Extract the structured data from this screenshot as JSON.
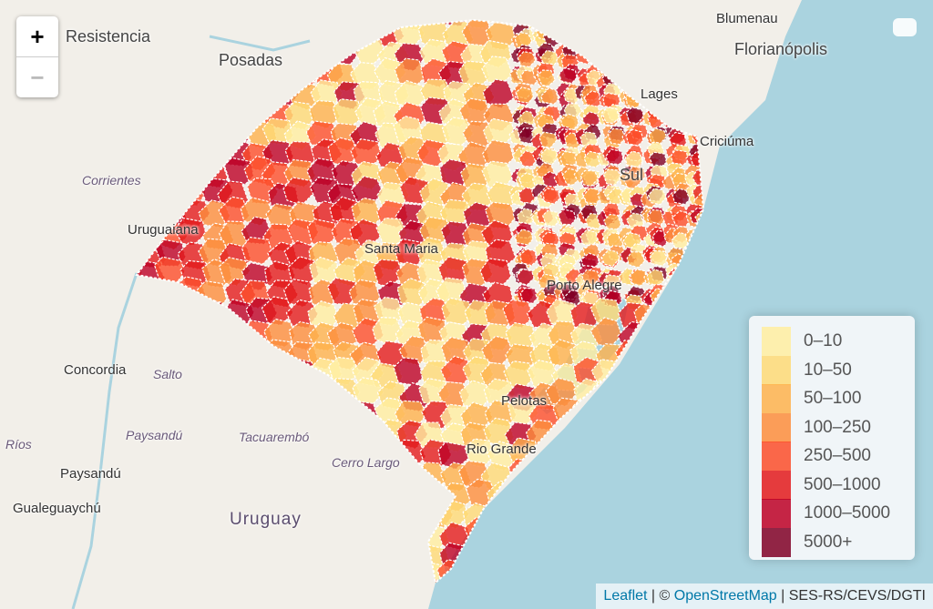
{
  "map": {
    "colors": {
      "land": "#f2efe9",
      "water": "#aad3df",
      "border": "#ffffff"
    },
    "labels": [
      {
        "text": "Posadas",
        "cls": "big",
        "pos": "posadas"
      },
      {
        "text": "Blumenau",
        "cls": "",
        "pos": "blumenau"
      },
      {
        "text": "Florianópolis",
        "cls": "big",
        "pos": "floripa"
      },
      {
        "text": "Lages",
        "cls": "",
        "pos": "lages"
      },
      {
        "text": "Criciúma",
        "cls": "",
        "pos": "criciuma"
      },
      {
        "text": "Corrientes",
        "cls": "region",
        "pos": "corrientes"
      },
      {
        "text": "Uruguaiana",
        "cls": "",
        "pos": "uruguaiana"
      },
      {
        "text": "Santa Maria",
        "cls": "",
        "pos": "santamaria"
      },
      {
        "text": "Concordia",
        "cls": "",
        "pos": "concordia"
      },
      {
        "text": "Salto",
        "cls": "region",
        "pos": "salto"
      },
      {
        "text": "Paysandú",
        "cls": "region",
        "pos": "paysandu1"
      },
      {
        "text": "Tacuarembó",
        "cls": "region",
        "pos": "tacuarembo"
      },
      {
        "text": "Cerro Largo",
        "cls": "region",
        "pos": "cerrolargo"
      },
      {
        "text": "Paysandú",
        "cls": "",
        "pos": "paysandu2"
      },
      {
        "text": "Gualeguaychú",
        "cls": "",
        "pos": "gualeguaychu"
      },
      {
        "text": "Uruguay",
        "cls": "country",
        "pos": "uruguay"
      },
      {
        "text": "Ríos",
        "cls": "region",
        "pos": "rios"
      },
      {
        "text": "Rio Grande",
        "cls": "",
        "pos": "riogrande"
      },
      {
        "text": "Pelotas",
        "cls": "",
        "pos": "pelotas"
      },
      {
        "text": "Porto Alegre",
        "cls": "",
        "pos": "portoalegre"
      },
      {
        "text": "Sul",
        "cls": "big",
        "pos": "sul"
      },
      {
        "text": "Resistencia",
        "cls": "big",
        "pos": "resistencia"
      }
    ]
  },
  "controls": {
    "zoom_in": "+",
    "zoom_out": "−"
  },
  "legend": {
    "items": [
      {
        "label": "0–10",
        "color": "#ffeda0"
      },
      {
        "label": "10–50",
        "color": "#fed976"
      },
      {
        "label": "50–100",
        "color": "#feb24c"
      },
      {
        "label": "100–250",
        "color": "#fd8d3c"
      },
      {
        "label": "250–500",
        "color": "#fc4e2a"
      },
      {
        "label": "500–1000",
        "color": "#e31a1c"
      },
      {
        "label": "1000–5000",
        "color": "#bd0026"
      },
      {
        "label": "5000+",
        "color": "#800026"
      }
    ]
  },
  "attribution": {
    "leaflet": "Leaflet",
    "sep1": " | © ",
    "osm": "OpenStreetMap",
    "sep2": " | ",
    "source": "SES-RS/CEVS/DGTI"
  }
}
